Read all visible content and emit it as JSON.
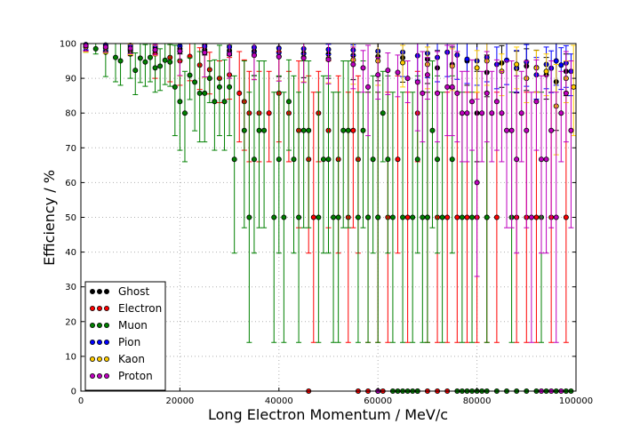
{
  "chart_data": {
    "type": "scatter",
    "title": "",
    "xlabel": "Long Electron Momentum / MeV/c",
    "ylabel": "Efficiency / %",
    "xlim": [
      0,
      100000
    ],
    "ylim": [
      0,
      100
    ],
    "x_ticks": [
      0,
      20000,
      40000,
      60000,
      80000,
      100000
    ],
    "x_tick_labels": [
      "0",
      "20000",
      "40000",
      "60000",
      "80000",
      "100000"
    ],
    "y_ticks": [
      0,
      10,
      20,
      30,
      40,
      50,
      60,
      70,
      80,
      90,
      100
    ],
    "y_tick_labels": [
      "0",
      "10",
      "20",
      "30",
      "40",
      "50",
      "60",
      "70",
      "80",
      "90",
      "100"
    ],
    "grid": true,
    "legend_position": "bottom-left",
    "error_bars": true,
    "series": [
      {
        "name": "Ghost",
        "color": "#000000",
        "points": [
          [
            1000,
            99.5
          ],
          [
            5000,
            99.3
          ],
          [
            10000,
            99.0
          ],
          [
            15000,
            98.8
          ],
          [
            20000,
            98.5
          ],
          [
            25000,
            98.2
          ],
          [
            30000,
            98.0
          ],
          [
            35000,
            97.8
          ],
          [
            40000,
            97.5
          ],
          [
            45000,
            97.2
          ],
          [
            50000,
            97.0
          ],
          [
            55000,
            96.6
          ],
          [
            60000,
            96.3
          ],
          [
            65000,
            95.9
          ],
          [
            70000,
            95.5
          ],
          [
            72000,
            93.0
          ],
          [
            75000,
            94.0
          ],
          [
            78000,
            95.0
          ],
          [
            80000,
            80.0
          ],
          [
            82000,
            91.7
          ],
          [
            85000,
            94.4
          ],
          [
            88000,
            92.8
          ],
          [
            90000,
            93.5
          ],
          [
            92000,
            93.1
          ],
          [
            94000,
            91.0
          ],
          [
            96000,
            89.0
          ],
          [
            98000,
            92.0
          ]
        ]
      },
      {
        "name": "Electron",
        "color": "#ff0000",
        "points": [
          [
            1000,
            99.3
          ],
          [
            5000,
            98.8
          ],
          [
            10000,
            98.0
          ],
          [
            15000,
            97.0
          ],
          [
            18000,
            96.0
          ],
          [
            20000,
            95.0
          ],
          [
            22000,
            96.3
          ],
          [
            24000,
            93.8
          ],
          [
            26000,
            92.5
          ],
          [
            28000,
            90.0
          ],
          [
            30000,
            91.0
          ],
          [
            32000,
            85.7
          ],
          [
            33000,
            83.3
          ],
          [
            34000,
            80.0
          ],
          [
            36000,
            80.0
          ],
          [
            38000,
            80.0
          ],
          [
            40000,
            85.7
          ],
          [
            42000,
            80.0
          ],
          [
            44000,
            75.0
          ],
          [
            46000,
            66.7
          ],
          [
            47000,
            50.0
          ],
          [
            48000,
            80.0
          ],
          [
            50000,
            75.0
          ],
          [
            52000,
            66.7
          ],
          [
            54000,
            50.0
          ],
          [
            55000,
            75.0
          ],
          [
            56000,
            66.7
          ],
          [
            58000,
            50.0
          ],
          [
            60000,
            50.0
          ],
          [
            62000,
            50.0
          ],
          [
            64000,
            66.7
          ],
          [
            66000,
            50.0
          ],
          [
            68000,
            80.0
          ],
          [
            70000,
            50.0
          ],
          [
            72000,
            50.0
          ],
          [
            74000,
            50.0
          ],
          [
            76000,
            50.0
          ],
          [
            78000,
            50.0
          ],
          [
            80000,
            50.0
          ],
          [
            82000,
            50.0
          ],
          [
            84000,
            50.0
          ],
          [
            88000,
            50.0
          ],
          [
            90000,
            50.0
          ],
          [
            92000,
            50.0
          ],
          [
            95000,
            50.0
          ],
          [
            98000,
            50.0
          ],
          [
            46000,
            0
          ],
          [
            56000,
            0
          ],
          [
            58000,
            0
          ],
          [
            61000,
            0
          ],
          [
            68000,
            0
          ],
          [
            70000,
            0
          ],
          [
            72000,
            0
          ],
          [
            74000,
            0
          ]
        ]
      },
      {
        "name": "Muon",
        "color": "#008000",
        "points": [
          [
            1000,
            99.0
          ],
          [
            3000,
            98.5
          ],
          [
            5000,
            97.5
          ],
          [
            7000,
            96.0
          ],
          [
            8000,
            95.0
          ],
          [
            10000,
            97.0
          ],
          [
            11000,
            92.3
          ],
          [
            12000,
            95.8
          ],
          [
            13000,
            94.7
          ],
          [
            14000,
            96.0
          ],
          [
            15000,
            93.0
          ],
          [
            16000,
            93.5
          ],
          [
            17000,
            95.2
          ],
          [
            18000,
            94.7
          ],
          [
            19000,
            87.5
          ],
          [
            20000,
            83.3
          ],
          [
            21000,
            80.0
          ],
          [
            22000,
            90.9
          ],
          [
            23000,
            88.9
          ],
          [
            24000,
            85.7
          ],
          [
            25000,
            85.7
          ],
          [
            26000,
            90.0
          ],
          [
            27000,
            83.3
          ],
          [
            28000,
            87.5
          ],
          [
            29000,
            83.3
          ],
          [
            30000,
            87.5
          ],
          [
            31000,
            66.7
          ],
          [
            33000,
            75.0
          ],
          [
            34000,
            50.0
          ],
          [
            35000,
            66.7
          ],
          [
            36000,
            75.0
          ],
          [
            37000,
            75.0
          ],
          [
            39000,
            50.0
          ],
          [
            40000,
            66.7
          ],
          [
            41000,
            50.0
          ],
          [
            42000,
            83.3
          ],
          [
            43000,
            66.7
          ],
          [
            44000,
            50.0
          ],
          [
            45000,
            75.0
          ],
          [
            46000,
            75.0
          ],
          [
            48000,
            50.0
          ],
          [
            49000,
            66.7
          ],
          [
            50000,
            66.7
          ],
          [
            51000,
            50.0
          ],
          [
            52000,
            50.0
          ],
          [
            53000,
            75.0
          ],
          [
            54000,
            75.0
          ],
          [
            56000,
            50.0
          ],
          [
            57000,
            75.0
          ],
          [
            58000,
            50.0
          ],
          [
            59000,
            66.7
          ],
          [
            60000,
            50.0
          ],
          [
            61000,
            80.0
          ],
          [
            62000,
            66.7
          ],
          [
            63000,
            50.0
          ],
          [
            65000,
            50.0
          ],
          [
            67000,
            50.0
          ],
          [
            68000,
            66.7
          ],
          [
            69000,
            50.0
          ],
          [
            70000,
            50.0
          ],
          [
            71000,
            75.0
          ],
          [
            72000,
            66.7
          ],
          [
            73000,
            50.0
          ],
          [
            75000,
            66.7
          ],
          [
            77000,
            50.0
          ],
          [
            79000,
            50.0
          ],
          [
            82000,
            50.0
          ],
          [
            87000,
            50.0
          ],
          [
            93000,
            50.0
          ],
          [
            60000,
            0
          ],
          [
            63000,
            0
          ],
          [
            64000,
            0
          ],
          [
            65000,
            0
          ],
          [
            66000,
            0
          ],
          [
            67000,
            0
          ],
          [
            68000,
            0
          ],
          [
            76000,
            0
          ],
          [
            77000,
            0
          ],
          [
            78000,
            0
          ],
          [
            79000,
            0
          ],
          [
            80000,
            0
          ],
          [
            81000,
            0
          ],
          [
            82000,
            0
          ],
          [
            84000,
            0
          ],
          [
            86000,
            0
          ],
          [
            88000,
            0
          ],
          [
            90000,
            0
          ],
          [
            92000,
            0
          ],
          [
            94000,
            0
          ],
          [
            96000,
            0
          ],
          [
            98000,
            0
          ],
          [
            99000,
            0
          ]
        ]
      },
      {
        "name": "Pion",
        "color": "#0000ff",
        "points": [
          [
            1000,
            99.7
          ],
          [
            5000,
            99.6
          ],
          [
            10000,
            99.5
          ],
          [
            15000,
            99.4
          ],
          [
            20000,
            99.3
          ],
          [
            25000,
            99.2
          ],
          [
            30000,
            99.0
          ],
          [
            35000,
            98.9
          ],
          [
            40000,
            98.7
          ],
          [
            45000,
            98.5
          ],
          [
            50000,
            98.3
          ],
          [
            55000,
            98.1
          ],
          [
            60000,
            97.8
          ],
          [
            65000,
            97.5
          ],
          [
            68000,
            96.5
          ],
          [
            70000,
            97.2
          ],
          [
            72000,
            96.0
          ],
          [
            74000,
            97.5
          ],
          [
            76000,
            96.7
          ],
          [
            78000,
            95.5
          ],
          [
            80000,
            95.0
          ],
          [
            82000,
            96.0
          ],
          [
            84000,
            94.0
          ],
          [
            86000,
            95.2
          ],
          [
            88000,
            93.0
          ],
          [
            90000,
            94.7
          ],
          [
            92000,
            91.0
          ],
          [
            94000,
            94.0
          ],
          [
            95000,
            92.9
          ],
          [
            96000,
            95.0
          ],
          [
            97000,
            93.8
          ],
          [
            98000,
            94.4
          ],
          [
            99000,
            92.0
          ]
        ]
      },
      {
        "name": "Kaon",
        "color": "#ffcc00",
        "points": [
          [
            1000,
            99.0
          ],
          [
            5000,
            98.7
          ],
          [
            10000,
            98.3
          ],
          [
            15000,
            98.0
          ],
          [
            20000,
            97.7
          ],
          [
            25000,
            97.3
          ],
          [
            30000,
            97.0
          ],
          [
            35000,
            96.7
          ],
          [
            40000,
            96.3
          ],
          [
            45000,
            96.0
          ],
          [
            50000,
            95.7
          ],
          [
            55000,
            95.3
          ],
          [
            60000,
            95.0
          ],
          [
            65000,
            94.5
          ],
          [
            70000,
            94.0
          ],
          [
            75000,
            93.5
          ],
          [
            80000,
            93.0
          ],
          [
            82000,
            95.0
          ],
          [
            85000,
            92.0
          ],
          [
            88000,
            94.0
          ],
          [
            90000,
            90.0
          ],
          [
            92000,
            93.0
          ],
          [
            94000,
            92.0
          ],
          [
            96000,
            82.0
          ],
          [
            98000,
            90.0
          ],
          [
            99500,
            87.5
          ]
        ]
      },
      {
        "name": "Proton",
        "color": "#bf00bf",
        "points": [
          [
            1000,
            99.4
          ],
          [
            5000,
            99.0
          ],
          [
            10000,
            98.6
          ],
          [
            15000,
            98.2
          ],
          [
            20000,
            97.8
          ],
          [
            25000,
            97.4
          ],
          [
            30000,
            97.0
          ],
          [
            35000,
            96.6
          ],
          [
            40000,
            96.2
          ],
          [
            45000,
            95.8
          ],
          [
            50000,
            95.4
          ],
          [
            55000,
            94.0
          ],
          [
            57000,
            93.0
          ],
          [
            58000,
            87.5
          ],
          [
            60000,
            91.0
          ],
          [
            62000,
            92.3
          ],
          [
            64000,
            91.7
          ],
          [
            66000,
            90.0
          ],
          [
            68000,
            88.9
          ],
          [
            69000,
            85.7
          ],
          [
            70000,
            91.0
          ],
          [
            72000,
            85.7
          ],
          [
            74000,
            87.5
          ],
          [
            75000,
            87.5
          ],
          [
            76000,
            85.7
          ],
          [
            77000,
            80.0
          ],
          [
            78000,
            80.0
          ],
          [
            79000,
            83.3
          ],
          [
            80000,
            60.0
          ],
          [
            81000,
            80.0
          ],
          [
            82000,
            85.7
          ],
          [
            83000,
            80.0
          ],
          [
            84000,
            83.3
          ],
          [
            85000,
            80.0
          ],
          [
            86000,
            75.0
          ],
          [
            87000,
            75.0
          ],
          [
            88000,
            66.7
          ],
          [
            89000,
            80.0
          ],
          [
            90000,
            75.0
          ],
          [
            91000,
            50.0
          ],
          [
            92000,
            83.3
          ],
          [
            93000,
            66.7
          ],
          [
            94000,
            66.7
          ],
          [
            95000,
            75.0
          ],
          [
            96000,
            50.0
          ],
          [
            97000,
            80.0
          ],
          [
            98000,
            85.7
          ],
          [
            99000,
            75.0
          ],
          [
            60000,
            0
          ],
          [
            93000,
            0
          ],
          [
            95000,
            0
          ],
          [
            97000,
            0
          ]
        ]
      }
    ]
  }
}
